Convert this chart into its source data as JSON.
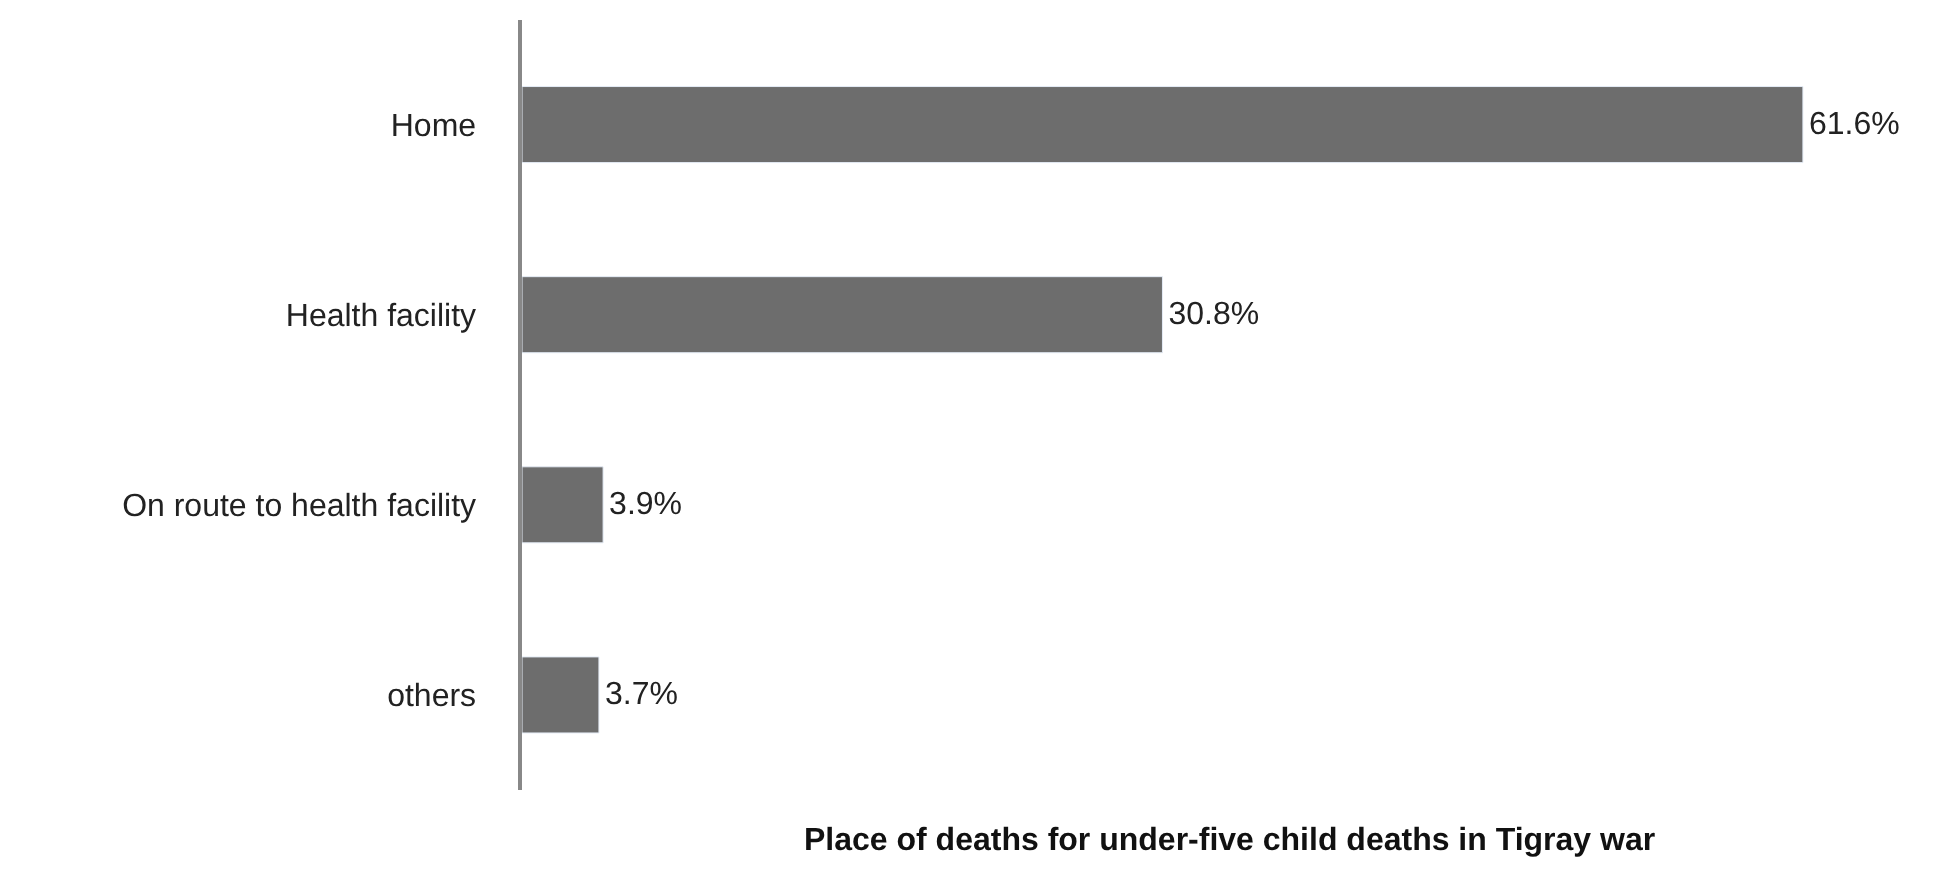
{
  "chart_data": {
    "type": "bar",
    "orientation": "horizontal",
    "title": "Place of deaths for under-five child deaths in Tigray war",
    "categories": [
      "Home",
      "Health facility",
      "On route to health facility",
      "others"
    ],
    "values": [
      61.6,
      30.8,
      3.9,
      3.7
    ],
    "value_labels": [
      "61.6%",
      "30.8%",
      "3.9%",
      "3.7%"
    ],
    "color": "#6d6d6d",
    "xlim": [
      0,
      68
    ]
  }
}
